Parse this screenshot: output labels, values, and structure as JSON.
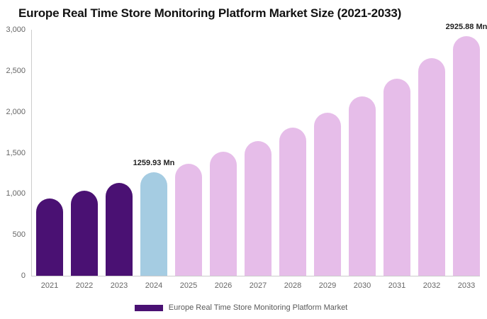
{
  "chart_data": {
    "type": "bar",
    "title": "Europe Real Time Store Monitoring Platform Market Size (2021-2033)",
    "categories": [
      "2021",
      "2022",
      "2023",
      "2024",
      "2025",
      "2026",
      "2027",
      "2028",
      "2029",
      "2030",
      "2031",
      "2032",
      "2033"
    ],
    "values": [
      945,
      1035,
      1135,
      1259.93,
      1370,
      1510,
      1645,
      1810,
      1990,
      2190,
      2405,
      2650,
      2925.88
    ],
    "value_labels": {
      "2024": "1259.93 Mn",
      "2033": "2925.88 Mn"
    },
    "unit": "Mn",
    "xlabel": "",
    "ylabel": "",
    "ylim": [
      0,
      3000
    ],
    "y_ticks": [
      {
        "value": 0,
        "label": "0"
      },
      {
        "value": 500,
        "label": "500"
      },
      {
        "value": 1000,
        "label": "1,000"
      },
      {
        "value": 1500,
        "label": "1,500"
      },
      {
        "value": 2000,
        "label": "2,000"
      },
      {
        "value": 2500,
        "label": "2,500"
      },
      {
        "value": 3000,
        "label": "3,000"
      }
    ],
    "grid": false,
    "legend_position": "bottom-center",
    "legend": {
      "label": "Europe Real Time Store Monitoring Platform Market",
      "color": "#4A1173"
    },
    "colors": {
      "historical": "#4A1173",
      "base_year": "#A5CCE2",
      "forecast": "#E6BDE9",
      "axis": "#CCCCCC",
      "tick_text": "#666666",
      "annotation_text": "#1F1F1F"
    },
    "bar_roles": [
      "historical",
      "historical",
      "historical",
      "base_year",
      "forecast",
      "forecast",
      "forecast",
      "forecast",
      "forecast",
      "forecast",
      "forecast",
      "forecast",
      "forecast"
    ]
  }
}
